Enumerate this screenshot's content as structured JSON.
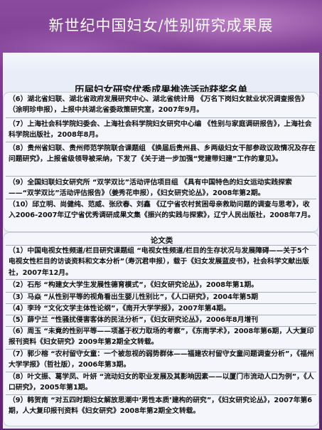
{
  "header": {
    "title": "新世纪中国妇女/性别研究成果展"
  },
  "document": {
    "title": "历届妇女研究优秀成果推选活动获奖名单",
    "section1": {
      "entries": [
        "（6）湖北省妇联、湖北省政府发展研究中心、湖北省统计局 《万名下岗妇女就业状况调查报告》（涂明珍申报），上报中共湖北省委政策研究室，2007年9月。",
        "（7）上海社会科学院妇委会、上海社会科学院妇女研究中心编 《性别与家庭调研报告》，上海社会科学院出版社，2008年8月。",
        "（8）贵州省妇联、贵州师范学院联合课题组 《换届后贵州县、乡两级妇女干部参政议政情况及存在问题研究》，上报省级领导被采纳，下发了《关于进一步加强“党建带妇建”工作的意见》。",
        "（9）全国妇联妇女研究所 “双学双比”活动评估项目组 《具有中国特色的妇女运动实践探索——“双学双比”活动评估报告》（姜秀花申报），《妇女研究论丛》，2008年第2期。",
        "（10）邱立明、尚健纯、范威、张欣春、刘鑫 《辽宁省农村贫困母亲救助问题的调查与思考》，收入2006-2007年辽宁省优秀调研成果文集《振兴的实践与探索》，辽宁人民出版社，2008年7月。"
      ]
    },
    "section2": {
      "heading": "论文类",
      "entries": [
        "（1）中国电视女性频道/栏目研究课题组 “电视女性频道/栏目的生存状况与发展障碍——关于5个电视女性栏目的访谈资料和文本分析”（寿沉君申报），载于《妇女发展蓝皮书》，社会科学文献出版社，2007年12月。",
        "（2）石彤 “构建女大学生发展性德育模式”，《妇女研究论丛》，2008年第1期。",
        "（3）马焱 “从性别平等的视角看出生婴儿性别比”，《人口研究》，2004年第5期",
        "（4）李玲 “文化文学主体性论纲”，《南开大学学报》，2007年第4期。",
        "（5）薛宁兰 “性骚扰侵害客体的民法分析”，《妇女研究论丛》，2006年8月增刊",
        "（6）周玉 “未竟的性别平等——项基于权力取场的考察”，《东南学术》，2008年第6期，人大复印报刊资料《妇女研究》2009年第2期全文转载。",
        "（7）郭少榕 “农村留守女童：一个被忽视的弱势群体——福建农村留守女童问题调查分析”，《福州大学学报》（哲社版），2006年第3期。",
        "（8）叶文振、葛学凤、叶妍 “流动妇女的职业发展及其影响因素——以厦门市流动人口为例”，《人口研究》，2005年第1期。",
        "（9）韩贺南 “对五四时期妇女解放思潮中‘男性本质’建构的研究”，《妇女研究论丛》，2007年第6期，人大复印报刊资料《妇女研究》2008年第2期全文转载。"
      ]
    }
  },
  "colors": {
    "header_bg": "#6b2c80",
    "panel_bg": "#e9edf7",
    "box_bg": "#f4f6fb",
    "box_border": "#c8cbd6",
    "text": "#111111"
  }
}
